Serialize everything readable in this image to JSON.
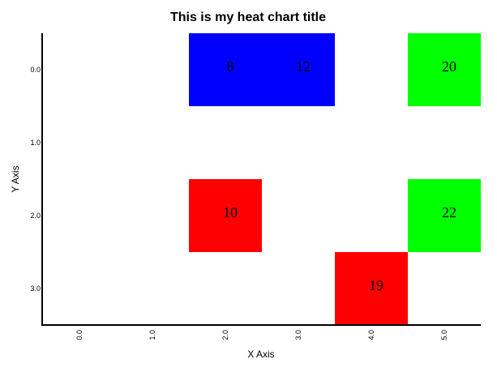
{
  "chart_data": {
    "type": "heatmap",
    "title": "This is my heat chart title",
    "xlabel": "X Axis",
    "ylabel": "Y Axis",
    "x_ticks": [
      "0.0",
      "1.0",
      "2.0",
      "3.0",
      "4.0",
      "5.0"
    ],
    "y_ticks": [
      "0.0",
      "1.0",
      "2.0",
      "3.0"
    ],
    "xlim": [
      -0.5,
      5.5
    ],
    "ylim": [
      -0.5,
      3.5
    ],
    "y_inverted": true,
    "grid": false,
    "cells": [
      {
        "x": 2,
        "y": 0,
        "value": 8,
        "label": "8",
        "color": "#0000ff"
      },
      {
        "x": 3,
        "y": 0,
        "value": 12,
        "label": "12",
        "color": "#0000ff"
      },
      {
        "x": 5,
        "y": 0,
        "value": 20,
        "label": "20",
        "color": "#00ff00"
      },
      {
        "x": 2,
        "y": 2,
        "value": 10,
        "label": "10",
        "color": "#ff0000"
      },
      {
        "x": 5,
        "y": 2,
        "value": 22,
        "label": "22",
        "color": "#00ff00"
      },
      {
        "x": 4,
        "y": 3,
        "value": 19,
        "label": "19",
        "color": "#ff0000"
      }
    ]
  }
}
